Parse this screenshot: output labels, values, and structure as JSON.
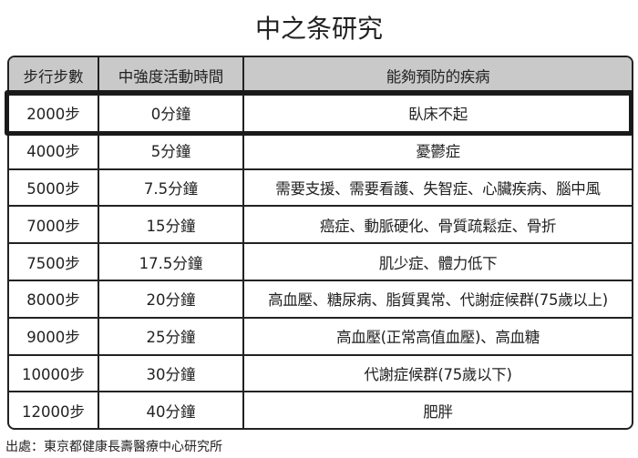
{
  "title": "中之条研究",
  "table": {
    "headers": [
      "步行步數",
      "中強度活動時間",
      "能夠預防的疾病"
    ],
    "rows": [
      [
        "2000步",
        "0分鐘",
        "臥床不起"
      ],
      [
        "4000步",
        "5分鐘",
        "憂鬱症"
      ],
      [
        "5000步",
        "7.5分鐘",
        "需要支援、需要看護、失智症、心臟疾病、腦中風"
      ],
      [
        "7000步",
        "15分鐘",
        "癌症、動脈硬化、骨質疏鬆症、骨折"
      ],
      [
        "7500步",
        "17.5分鐘",
        "肌少症、體力低下"
      ],
      [
        "8000步",
        "20分鐘",
        "高血壓、糖尿病、脂質異常、代謝症候群(75歲以上)"
      ],
      [
        "9000步",
        "25分鐘",
        "高血壓(正常高值血壓)、高血糖"
      ],
      [
        "10000步",
        "30分鐘",
        "代謝症候群(75歲以下)"
      ],
      [
        "12000步",
        "40分鐘",
        "肥胖"
      ]
    ],
    "highlighted_row": 0,
    "header_bg": "#c9c9c9"
  },
  "source": "出處：東京都健康長壽醫療中心研究所"
}
